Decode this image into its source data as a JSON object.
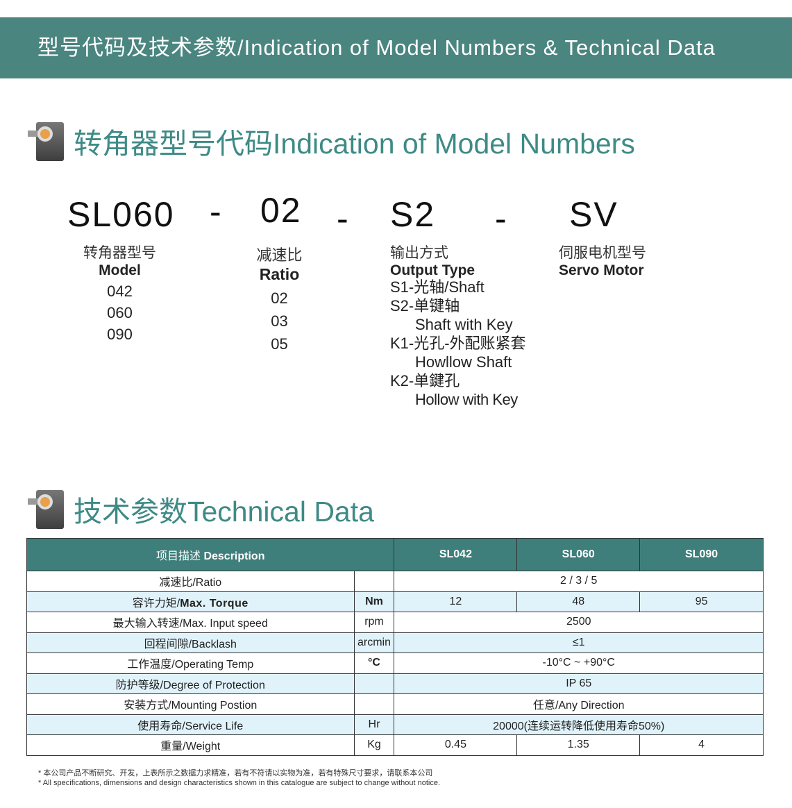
{
  "banner": "型号代码及技术参数/Indication of Model Numbers & Technical Data",
  "section1": {
    "title": "转角器型号代码Indication  of Model Numbers",
    "icon": "gearbox-image"
  },
  "code": {
    "parts": [
      "SL060",
      "02",
      "S2",
      "SV"
    ],
    "sep": "-"
  },
  "model": {
    "cn": "转角器型号",
    "en": "Model",
    "values": [
      "042",
      "060",
      "090"
    ]
  },
  "ratio": {
    "cn": "减速比",
    "en": "Ratio",
    "values": [
      "02",
      "03",
      "05"
    ]
  },
  "output": {
    "cn": "输出方式",
    "en": "Output Type",
    "items": [
      "S1-光轴/Shaft",
      "S2-单键轴",
      "Shaft with Key",
      "K1-光孔-外配账紧套",
      "Howllow Shaft",
      "K2-单鍵孔",
      "Hollow with Key"
    ]
  },
  "servo": {
    "cn": "伺服电机型号",
    "en": "Servo Motor"
  },
  "section2": {
    "title": "技术参数Technical Data",
    "icon": "gearbox-image"
  },
  "table": {
    "header": {
      "desc_cn": "项目描述 ",
      "desc_en": "Description",
      "models": [
        "SL042",
        "SL060",
        "SL090"
      ]
    },
    "rows": [
      {
        "cn": "减速比/",
        "en": "Ratio",
        "unit": "",
        "values": [
          "2 / 3 / 5"
        ]
      },
      {
        "cn": "容许力矩/",
        "en": "Max. Torque",
        "unit": "Nm",
        "values": [
          "12",
          "48",
          "95"
        ],
        "bold": true
      },
      {
        "cn": "最大输入转速/",
        "en": "Max. Input speed",
        "unit": "rpm",
        "values": [
          "2500"
        ]
      },
      {
        "cn": "回程间隙/",
        "en": "Backlash",
        "unit": "arcmin",
        "values": [
          "≤1"
        ]
      },
      {
        "cn": "工作温度/",
        "en": "Operating Temp",
        "unit": "°C",
        "values": [
          "-10°C ~ +90°C"
        ]
      },
      {
        "cn": "防护等级/",
        "en": "Degree of Protection",
        "unit": "",
        "values": [
          "IP 65"
        ]
      },
      {
        "cn": "安装方式/",
        "en": "Mounting Postion",
        "unit": "",
        "values": [
          "任意/Any Direction"
        ]
      },
      {
        "cn": "使用寿命/",
        "en": "Service Life",
        "unit": "Hr",
        "values": [
          "20000(连续运转降低使用寿命50%)"
        ]
      },
      {
        "cn": "重量/",
        "en": "Weight",
        "unit": "Kg",
        "values": [
          "0.45",
          "1.35",
          "4"
        ]
      }
    ]
  },
  "notes": [
    "* 本公司产品不断研究、开发，上表所示之数据力求精准，若有不符请以实物为准，若有特殊尺寸要求，请联系本公司",
    "* All specifications, dimensions and design characteristics shown in this catalogue are subject to change without notice."
  ],
  "colors": {
    "banner": "#4a8580",
    "heading": "#3e8a86",
    "table_header": "#3f7f7b",
    "alt_row": "#e1f3fa"
  }
}
